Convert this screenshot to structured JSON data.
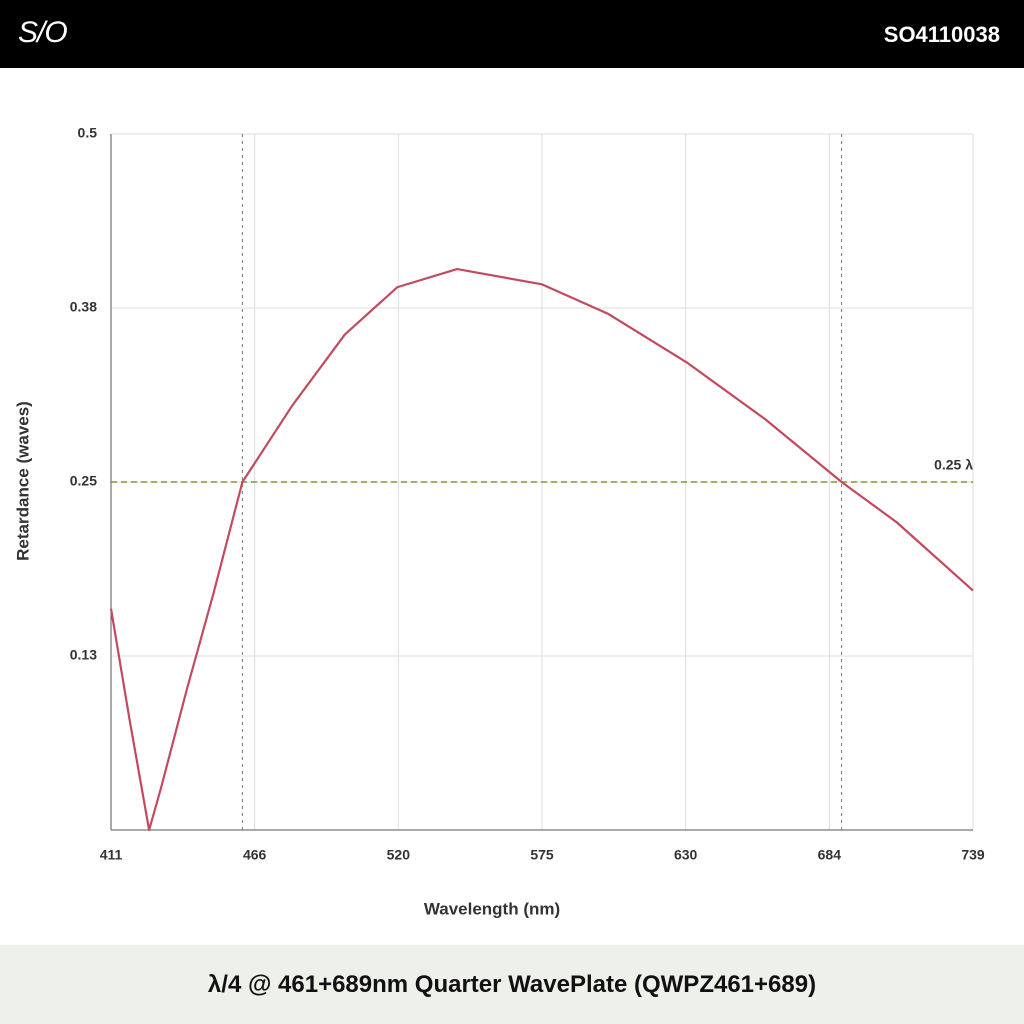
{
  "header": {
    "logo": "S/O",
    "code": "SO4110038"
  },
  "chart_data": {
    "type": "line",
    "title": "λ/4 @ 461+689nm Quarter WavePlate (QWPZ461+689)",
    "x_label": "Wavelength (nm)",
    "y_label": "Retardance (waves)",
    "x": [
      411,
      418,
      425.5,
      430,
      440,
      450,
      461,
      480,
      500,
      520,
      542.7,
      575,
      600,
      630,
      660,
      689,
      710,
      739
    ],
    "series": [
      {
        "color": "#c24a5f",
        "values": [
          0.159,
          0.08,
          0,
          0.03,
          0.102,
          0.17,
          0.25,
          0.305,
          0.356,
          0.39,
          0.403,
          0.392,
          0.371,
          0.336,
          0.295,
          0.25,
          0.221,
          0.172
        ]
      }
    ],
    "xlim": [
      411,
      739
    ],
    "xticks": [
      411,
      {
        "value": 465.667,
        "label": "466"
      },
      {
        "value": 520.333,
        "label": "520"
      },
      575,
      {
        "value": 629.667,
        "label": "630"
      },
      {
        "value": 684.333,
        "label": "684"
      },
      739
    ],
    "ylim": [
      0,
      0.5
    ],
    "yticks": [
      {
        "value": 0.125,
        "label": "0.13"
      },
      0.25,
      {
        "value": 0.375,
        "label": "0.38"
      },
      0.5
    ],
    "grid": true,
    "reference_line": {
      "y": 0.25,
      "label": "0.25 λ",
      "color": "#7f9a2e"
    },
    "marker_lines": [
      461,
      689
    ]
  }
}
